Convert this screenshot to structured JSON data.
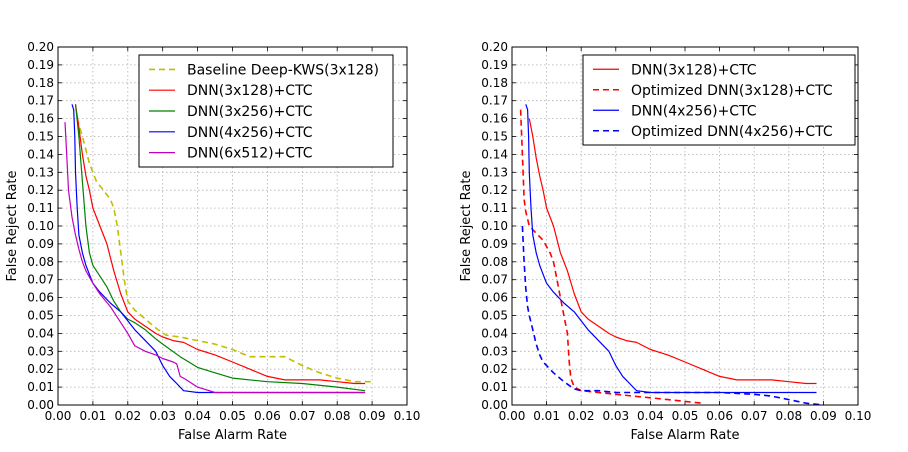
{
  "chart_data": [
    {
      "type": "line",
      "xlabel": "False Alarm Rate",
      "ylabel": "False Reject Rate",
      "xlim": [
        0.0,
        0.1
      ],
      "ylim": [
        0.0,
        0.2
      ],
      "xticks": [
        "0.00",
        "0.01",
        "0.02",
        "0.03",
        "0.04",
        "0.05",
        "0.06",
        "0.07",
        "0.08",
        "0.09",
        "0.10"
      ],
      "yticks": [
        "0.00",
        "0.01",
        "0.02",
        "0.03",
        "0.04",
        "0.05",
        "0.06",
        "0.07",
        "0.08",
        "0.09",
        "0.10",
        "0.11",
        "0.12",
        "0.13",
        "0.14",
        "0.15",
        "0.16",
        "0.17",
        "0.18",
        "0.19",
        "0.20"
      ],
      "grid": true,
      "legend_position": "top-right",
      "series": [
        {
          "name": "Baseline Deep-KWS(3x128)",
          "color": "#bfbf00",
          "dash": "dashed",
          "x": [
            0.0055,
            0.007,
            0.009,
            0.011,
            0.013,
            0.015,
            0.016,
            0.017,
            0.018,
            0.019,
            0.02,
            0.022,
            0.025,
            0.028,
            0.031,
            0.035,
            0.04,
            0.045,
            0.05,
            0.055,
            0.06,
            0.065,
            0.07,
            0.075,
            0.08,
            0.085,
            0.09
          ],
          "y": [
            0.16,
            0.15,
            0.135,
            0.125,
            0.12,
            0.115,
            0.11,
            0.1,
            0.085,
            0.07,
            0.058,
            0.053,
            0.048,
            0.043,
            0.039,
            0.038,
            0.036,
            0.034,
            0.031,
            0.027,
            0.027,
            0.027,
            0.022,
            0.018,
            0.015,
            0.013,
            0.013
          ]
        },
        {
          "name": "DNN(3x128)+CTC",
          "color": "#ff0000",
          "dash": "solid",
          "x": [
            0.005,
            0.006,
            0.007,
            0.008,
            0.009,
            0.01,
            0.012,
            0.014,
            0.016,
            0.018,
            0.02,
            0.022,
            0.025,
            0.028,
            0.03,
            0.033,
            0.036,
            0.04,
            0.045,
            0.05,
            0.055,
            0.06,
            0.065,
            0.07,
            0.075,
            0.08,
            0.085,
            0.088
          ],
          "y": [
            0.168,
            0.155,
            0.14,
            0.128,
            0.12,
            0.11,
            0.1,
            0.09,
            0.075,
            0.062,
            0.052,
            0.048,
            0.044,
            0.04,
            0.038,
            0.036,
            0.035,
            0.031,
            0.028,
            0.024,
            0.02,
            0.016,
            0.014,
            0.014,
            0.014,
            0.013,
            0.012,
            0.012
          ]
        },
        {
          "name": "DNN(3x256)+CTC",
          "color": "#008000",
          "dash": "solid",
          "x": [
            0.005,
            0.006,
            0.007,
            0.008,
            0.009,
            0.01,
            0.012,
            0.014,
            0.016,
            0.018,
            0.02,
            0.022,
            0.025,
            0.028,
            0.03,
            0.035,
            0.04,
            0.045,
            0.05,
            0.06,
            0.07,
            0.08,
            0.088
          ],
          "y": [
            0.168,
            0.15,
            0.125,
            0.1,
            0.085,
            0.078,
            0.072,
            0.066,
            0.058,
            0.052,
            0.048,
            0.046,
            0.042,
            0.037,
            0.034,
            0.027,
            0.021,
            0.018,
            0.015,
            0.013,
            0.012,
            0.01,
            0.008
          ]
        },
        {
          "name": "DNN(4x256)+CTC",
          "color": "#0000ff",
          "dash": "solid",
          "x": [
            0.004,
            0.0045,
            0.0048,
            0.005,
            0.0055,
            0.006,
            0.007,
            0.008,
            0.009,
            0.01,
            0.012,
            0.015,
            0.018,
            0.02,
            0.022,
            0.025,
            0.028,
            0.03,
            0.032,
            0.034,
            0.036,
            0.04,
            0.05,
            0.06,
            0.07,
            0.08,
            0.088
          ],
          "y": [
            0.168,
            0.165,
            0.15,
            0.13,
            0.11,
            0.095,
            0.085,
            0.078,
            0.073,
            0.068,
            0.063,
            0.057,
            0.052,
            0.047,
            0.042,
            0.036,
            0.03,
            0.022,
            0.016,
            0.012,
            0.008,
            0.007,
            0.007,
            0.007,
            0.007,
            0.007,
            0.007
          ]
        },
        {
          "name": "DNN(6x512)+CTC",
          "color": "#bf00bf",
          "dash": "solid",
          "x": [
            0.002,
            0.0025,
            0.003,
            0.004,
            0.005,
            0.006,
            0.007,
            0.008,
            0.01,
            0.012,
            0.015,
            0.018,
            0.02,
            0.022,
            0.025,
            0.028,
            0.03,
            0.033,
            0.034,
            0.035,
            0.036,
            0.04,
            0.045,
            0.05,
            0.06,
            0.07,
            0.08,
            0.088
          ],
          "y": [
            0.158,
            0.14,
            0.12,
            0.105,
            0.095,
            0.087,
            0.08,
            0.075,
            0.068,
            0.062,
            0.055,
            0.046,
            0.04,
            0.033,
            0.03,
            0.028,
            0.026,
            0.024,
            0.023,
            0.016,
            0.015,
            0.01,
            0.007,
            0.007,
            0.007,
            0.007,
            0.007,
            0.007
          ]
        }
      ]
    },
    {
      "type": "line",
      "xlabel": "False Alarm Rate",
      "ylabel": "False Reject Rate",
      "xlim": [
        0.0,
        0.1
      ],
      "ylim": [
        0.0,
        0.2
      ],
      "xticks": [
        "0.00",
        "0.01",
        "0.02",
        "0.03",
        "0.04",
        "0.05",
        "0.06",
        "0.07",
        "0.08",
        "0.09",
        "0.10"
      ],
      "yticks": [
        "0.00",
        "0.01",
        "0.02",
        "0.03",
        "0.04",
        "0.05",
        "0.06",
        "0.07",
        "0.08",
        "0.09",
        "0.10",
        "0.11",
        "0.12",
        "0.13",
        "0.14",
        "0.15",
        "0.16",
        "0.17",
        "0.18",
        "0.19",
        "0.20"
      ],
      "grid": true,
      "legend_position": "top-right",
      "series": [
        {
          "name": "DNN(3x128)+CTC",
          "color": "#ff0000",
          "dash": "solid",
          "x": [
            0.005,
            0.006,
            0.007,
            0.008,
            0.009,
            0.01,
            0.012,
            0.014,
            0.016,
            0.018,
            0.02,
            0.022,
            0.025,
            0.028,
            0.03,
            0.033,
            0.036,
            0.04,
            0.045,
            0.05,
            0.055,
            0.06,
            0.065,
            0.07,
            0.075,
            0.08,
            0.085,
            0.088
          ],
          "y": [
            0.16,
            0.15,
            0.138,
            0.128,
            0.12,
            0.11,
            0.1,
            0.085,
            0.075,
            0.062,
            0.052,
            0.048,
            0.044,
            0.04,
            0.038,
            0.036,
            0.035,
            0.031,
            0.028,
            0.024,
            0.02,
            0.016,
            0.014,
            0.014,
            0.014,
            0.013,
            0.012,
            0.012
          ]
        },
        {
          "name": "Optimized DNN(3x128)+CTC",
          "color": "#ff0000",
          "dash": "dashed",
          "x": [
            0.0025,
            0.003,
            0.0035,
            0.004,
            0.005,
            0.007,
            0.009,
            0.011,
            0.012,
            0.013,
            0.014,
            0.015,
            0.016,
            0.0165,
            0.017,
            0.018,
            0.02,
            0.025,
            0.03,
            0.035,
            0.04,
            0.045,
            0.05,
            0.055
          ],
          "y": [
            0.165,
            0.14,
            0.115,
            0.108,
            0.1,
            0.096,
            0.092,
            0.085,
            0.08,
            0.07,
            0.06,
            0.05,
            0.04,
            0.025,
            0.015,
            0.01,
            0.008,
            0.007,
            0.006,
            0.005,
            0.004,
            0.003,
            0.002,
            0.001
          ]
        },
        {
          "name": "DNN(4x256)+CTC",
          "color": "#0000ff",
          "dash": "solid",
          "x": [
            0.004,
            0.0045,
            0.0048,
            0.005,
            0.0055,
            0.006,
            0.007,
            0.008,
            0.009,
            0.01,
            0.012,
            0.015,
            0.018,
            0.02,
            0.022,
            0.025,
            0.028,
            0.03,
            0.032,
            0.034,
            0.036,
            0.04,
            0.05,
            0.06,
            0.07,
            0.08,
            0.088
          ],
          "y": [
            0.168,
            0.165,
            0.15,
            0.13,
            0.11,
            0.095,
            0.085,
            0.078,
            0.073,
            0.068,
            0.063,
            0.057,
            0.052,
            0.047,
            0.042,
            0.036,
            0.03,
            0.022,
            0.016,
            0.012,
            0.008,
            0.007,
            0.007,
            0.007,
            0.007,
            0.007,
            0.007
          ]
        },
        {
          "name": "Optimized DNN(4x256)+CTC",
          "color": "#0000ff",
          "dash": "dashed",
          "x": [
            0.003,
            0.0035,
            0.004,
            0.0045,
            0.005,
            0.006,
            0.007,
            0.008,
            0.009,
            0.01,
            0.012,
            0.015,
            0.018,
            0.02,
            0.025,
            0.03,
            0.04,
            0.05,
            0.06,
            0.07,
            0.075,
            0.08,
            0.085,
            0.09
          ],
          "y": [
            0.1,
            0.08,
            0.065,
            0.055,
            0.05,
            0.042,
            0.034,
            0.028,
            0.024,
            0.022,
            0.018,
            0.013,
            0.009,
            0.008,
            0.008,
            0.007,
            0.007,
            0.007,
            0.007,
            0.006,
            0.005,
            0.003,
            0.001,
            0.0
          ]
        }
      ]
    }
  ]
}
